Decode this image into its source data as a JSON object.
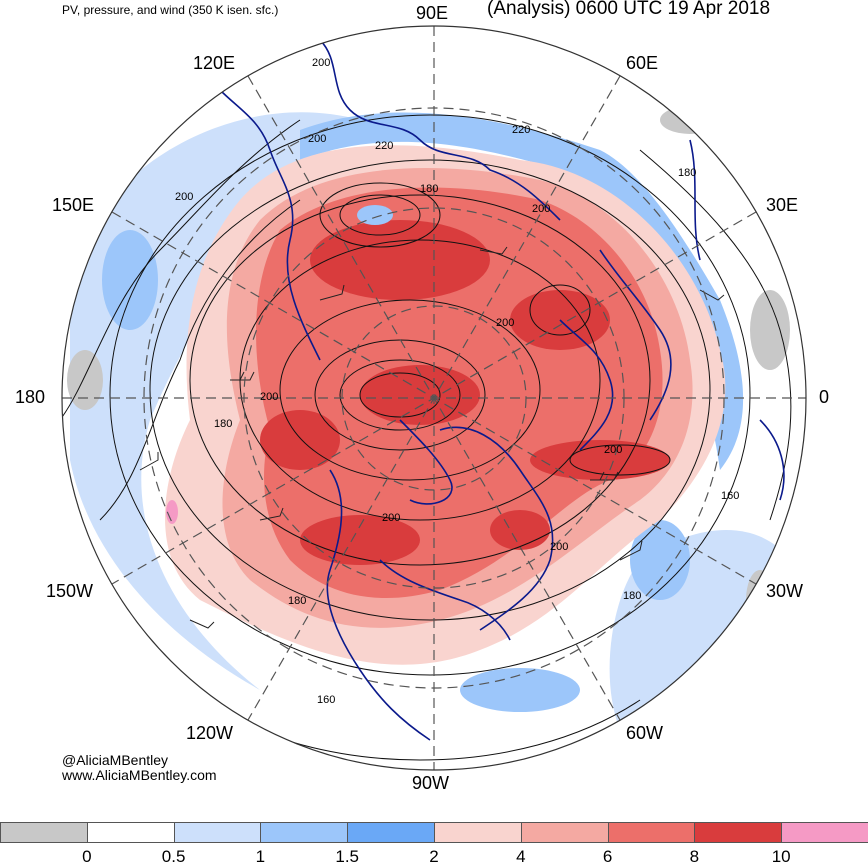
{
  "header": {
    "left_title": "PV, pressure, and wind (350 K isen. sfc.)",
    "right_title": "(Analysis) 0600 UTC 19 Apr 2018"
  },
  "map": {
    "projection": "north-polar-stereographic",
    "longitude_labels": {
      "top": "90E",
      "top_right": "60E",
      "right_upper": "30E",
      "right": "0",
      "right_lower": "30W",
      "bottom_right": "60W",
      "bottom": "90W",
      "bottom_left": "120W",
      "left_lower": "150W",
      "left": "180",
      "left_upper": "150E",
      "top_left": "120E"
    },
    "contour_labels": [
      "200",
      "220",
      "220",
      "180",
      "200",
      "200",
      "180",
      "200",
      "200",
      "180",
      "200",
      "200",
      "200",
      "160",
      "180",
      "180",
      "160",
      "200"
    ],
    "colors": {
      "coast": "#0b1a8c",
      "contour": "#111111",
      "pv_0": "#c8c8c8",
      "pv_0_5": "#ffffff",
      "pv_0_5_1": "#cde0fb",
      "pv_1_1_5": "#9cc6fa",
      "pv_1_5_2": "#6aa8f6",
      "pv_2_4": "#f9d4cf",
      "pv_4_6": "#f4a9a2",
      "pv_6_8": "#ec6f6a",
      "pv_8_10": "#d93c3d",
      "pv_10_plus": "#f59ac5"
    }
  },
  "credit": {
    "handle": "@AliciaMBentley",
    "site": "www.AliciaMBentley.com"
  },
  "colorbar": {
    "colors": [
      "#c8c8c8",
      "#ffffff",
      "#cde0fb",
      "#9cc6fa",
      "#6aa8f6",
      "#f9d4cf",
      "#f4a9a2",
      "#ec6f6a",
      "#d93c3d",
      "#f59ac5"
    ],
    "labels": [
      "0",
      "0.5",
      "1",
      "1.5",
      "2",
      "4",
      "6",
      "8",
      "10"
    ]
  }
}
